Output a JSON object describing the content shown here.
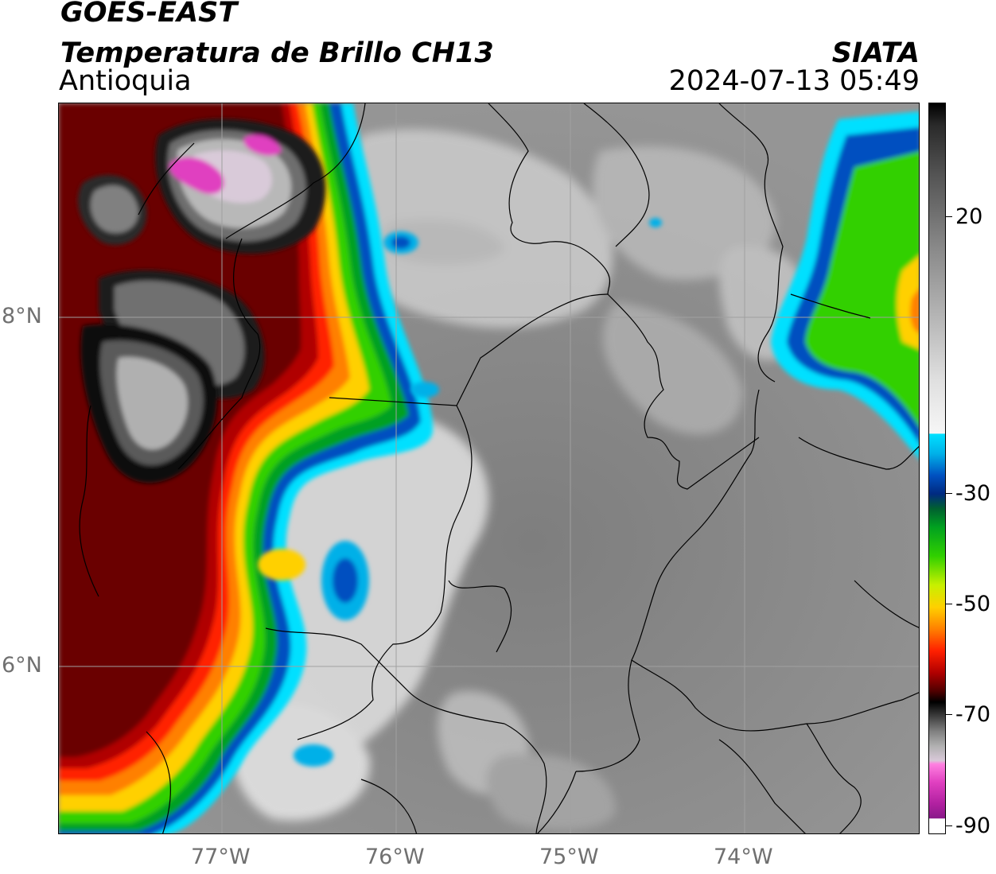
{
  "header": {
    "title_line1": "GOES-EAST",
    "title_line2": "Temperatura de Brillo CH13",
    "subtitle": "Antioquia",
    "organization": "SIATA",
    "datetime": "2024-07-13 05:49"
  },
  "map": {
    "lat_labels": [
      "8°N",
      "6°N"
    ],
    "lon_labels": [
      "77°W",
      "76°W",
      "75°W",
      "74°W"
    ],
    "background_color": "#8e8e8e",
    "border_color": "#000000"
  },
  "colorbar": {
    "tick_labels": [
      "20",
      "-30",
      "-50",
      "-70",
      "-90"
    ],
    "palette": {
      "cold_convection_pink": "#e040c0",
      "deep_red": "#b00000",
      "orange": "#ff8000",
      "yellow": "#ffd000",
      "green": "#30d000",
      "blue": "#0050c0",
      "cyan": "#00e0ff",
      "warm_gray": "#8e8e8e"
    }
  }
}
